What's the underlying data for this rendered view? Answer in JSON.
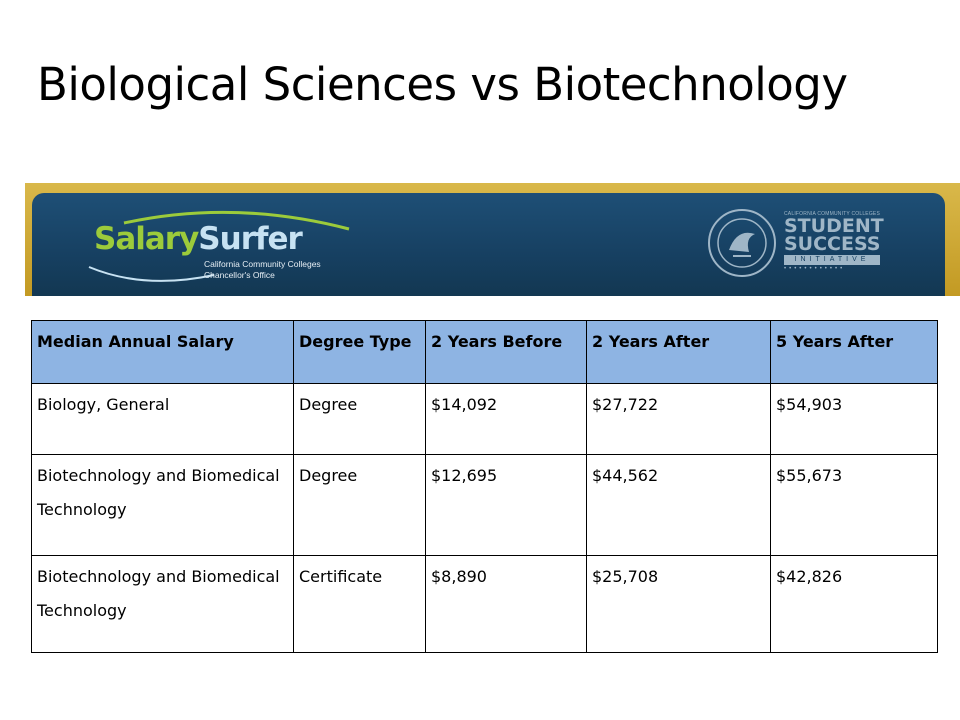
{
  "slide": {
    "title": "Biological Sciences vs Biotechnology"
  },
  "banner": {
    "logo_part1": "Salary",
    "logo_part2": "Surfer",
    "logo_sub1": "California Community Colleges",
    "logo_sub2": "Chancellor's Office",
    "ssi_top": "CALIFORNIA COMMUNITY COLLEGES",
    "ssi_line1": "STUDENT",
    "ssi_line2": "SUCCESS",
    "ssi_line3": "INITIATIVE",
    "colors": {
      "gold": "#c9a12c",
      "navy": "#163f60",
      "green": "#9ccb3b"
    }
  },
  "table": {
    "header_color": "#8eb4e3",
    "headers": [
      "Median Annual Salary",
      "Degree Type",
      "2 Years Before",
      "2 Years After",
      "5 Years After"
    ],
    "rows": [
      [
        "Biology, General",
        "Degree",
        "$14,092",
        "$27,722",
        "$54,903"
      ],
      [
        "Biotechnology and Biomedical Technology",
        "Degree",
        "$12,695",
        "$44,562",
        "$55,673"
      ],
      [
        "Biotechnology and Biomedical Technology",
        "Certificate",
        "$8,890",
        "$25,708",
        "$42,826"
      ]
    ]
  }
}
